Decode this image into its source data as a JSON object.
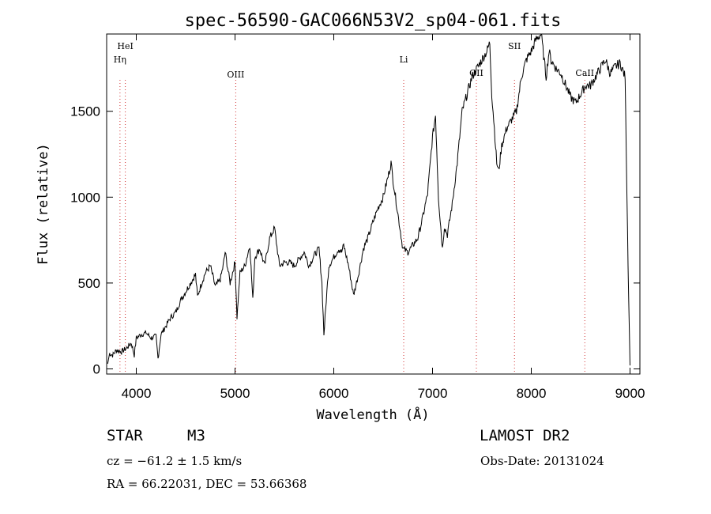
{
  "chart_data": {
    "type": "line",
    "title": "spec-56590-GAC066N53V2_sp04-061.fits",
    "xlabel": "Wavelength (Å)",
    "ylabel": "Flux (relative)",
    "xlim": [
      3700,
      9100
    ],
    "ylim": [
      -30,
      1950
    ],
    "xticks": [
      "4000",
      "5000",
      "6000",
      "7000",
      "8000",
      "9000"
    ],
    "xtick_values": [
      4000,
      5000,
      6000,
      7000,
      8000,
      9000
    ],
    "yticks": [
      "0",
      "500",
      "1000",
      "1500"
    ],
    "ytick_values": [
      0,
      500,
      1000,
      1500
    ],
    "grid": false,
    "series": [
      {
        "x": [
          3710,
          3730,
          3760,
          3800,
          3850,
          3900,
          3950,
          3980,
          4000,
          4050,
          4100,
          4150,
          4200,
          4220,
          4250,
          4300,
          4350,
          4400,
          4450,
          4500,
          4550,
          4600,
          4620,
          4650,
          4700,
          4750,
          4800,
          4850,
          4880,
          4900,
          4950,
          5000,
          5020,
          5050,
          5100,
          5150,
          5180,
          5200,
          5250,
          5300,
          5350,
          5400,
          5450,
          5500,
          5550,
          5600,
          5650,
          5700,
          5750,
          5800,
          5850,
          5880,
          5900,
          5930,
          5950,
          6000,
          6050,
          6080,
          6100,
          6150,
          6200,
          6250,
          6300,
          6350,
          6400,
          6450,
          6500,
          6550,
          6580,
          6600,
          6650,
          6700,
          6750,
          6800,
          6850,
          6900,
          6950,
          7000,
          7030,
          7060,
          7100,
          7120,
          7150,
          7200,
          7250,
          7300,
          7350,
          7400,
          7450,
          7500,
          7550,
          7580,
          7600,
          7620,
          7650,
          7670,
          7700,
          7750,
          7800,
          7850,
          7900,
          7950,
          8000,
          8050,
          8100,
          8150,
          8180,
          8200,
          8250,
          8300,
          8350,
          8400,
          8450,
          8500,
          8550,
          8600,
          8650,
          8700,
          8750,
          8800,
          8850,
          8900,
          8950,
          8980,
          9000
        ],
        "y": [
          30,
          90,
          80,
          110,
          100,
          120,
          150,
          80,
          180,
          200,
          210,
          180,
          190,
          60,
          200,
          250,
          300,
          330,
          400,
          450,
          500,
          550,
          420,
          480,
          560,
          600,
          480,
          520,
          600,
          680,
          500,
          620,
          300,
          560,
          600,
          720,
          400,
          650,
          700,
          600,
          760,
          820,
          600,
          620,
          620,
          600,
          640,
          680,
          600,
          660,
          700,
          500,
          200,
          450,
          600,
          650,
          700,
          680,
          720,
          600,
          430,
          550,
          700,
          770,
          860,
          940,
          1000,
          1120,
          1200,
          1100,
          900,
          700,
          680,
          720,
          760,
          880,
          1020,
          1350,
          1480,
          1000,
          700,
          830,
          780,
          960,
          1200,
          1500,
          1600,
          1700,
          1750,
          1800,
          1850,
          1900,
          1600,
          1450,
          1200,
          1150,
          1300,
          1400,
          1450,
          1500,
          1700,
          1800,
          1850,
          1920,
          1950,
          1700,
          1850,
          1800,
          1750,
          1720,
          1650,
          1580,
          1550,
          1600,
          1650,
          1650,
          1700,
          1750,
          1800,
          1720,
          1760,
          1780,
          1700,
          600,
          20
        ]
      }
    ],
    "lines": [
      {
        "label": "HeI",
        "x": 3889
      },
      {
        "label": "Hη",
        "x": 3835
      },
      {
        "label": "OIII",
        "x": 5007
      },
      {
        "label": "Li",
        "x": 6708
      },
      {
        "label": "OII",
        "x": 7444
      },
      {
        "label": "SII",
        "x": 7830
      },
      {
        "label": "CaII",
        "x": 8542
      }
    ]
  },
  "info": {
    "obj_class": "STAR",
    "subclass": "M3",
    "cz": "cz = −61.2 ± 1.5 km/s",
    "coords": "RA =  66.22031, DEC =  53.66368",
    "survey": "LAMOST DR2",
    "obs_date": "Obs-Date: 20131024"
  }
}
